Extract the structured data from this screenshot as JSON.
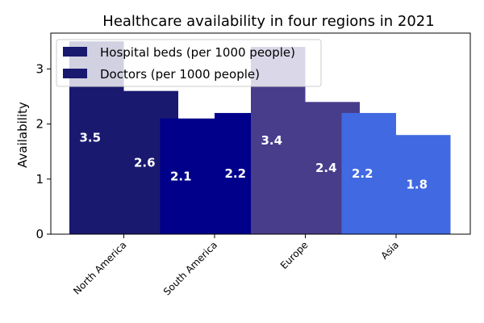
{
  "chart_data": {
    "type": "bar",
    "title": "Healthcare availability in four regions in 2021",
    "xlabel": "",
    "ylabel": "Availability",
    "ylim": [
      0,
      3.65
    ],
    "yticks": [
      "0",
      "1",
      "2",
      "3"
    ],
    "categories": [
      "North America",
      "South America",
      "Europe",
      "Asia"
    ],
    "category_colors": [
      "#191970",
      "#00008b",
      "#483d8b",
      "#4169e1"
    ],
    "series": [
      {
        "name": "Hospital beds (per 1000 people)",
        "values": [
          3.5,
          2.1,
          3.4,
          2.2
        ],
        "labels": [
          "3.5",
          "2.1",
          "3.4",
          "2.2"
        ]
      },
      {
        "name": "Doctors (per 1000 people)",
        "values": [
          2.6,
          2.2,
          2.4,
          1.8
        ],
        "labels": [
          "2.6",
          "2.2",
          "2.4",
          "1.8"
        ]
      }
    ],
    "legend_position": "top-left",
    "legend_color": "#191970",
    "grid": false
  }
}
